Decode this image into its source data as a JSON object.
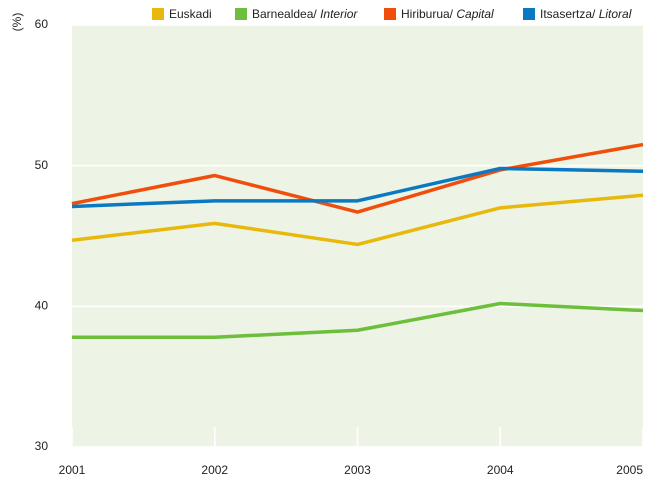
{
  "chart_data": {
    "type": "line",
    "y_label": "(%)",
    "x": [
      2001,
      2002,
      2003,
      2004,
      2005
    ],
    "series": [
      {
        "name": "Euskadi",
        "color": "#e8b90c",
        "values": [
          44.7,
          45.9,
          44.4,
          47.0,
          47.9
        ]
      },
      {
        "name": "Barnealdea/ Interior",
        "color": "#6cbf3a",
        "values": [
          37.8,
          37.8,
          38.3,
          40.2,
          39.7
        ]
      },
      {
        "name": "Hiriburua/ Capital",
        "color": "#f04e0c",
        "values": [
          47.3,
          49.3,
          46.7,
          49.7,
          51.5
        ]
      },
      {
        "name": "Itsasertza/ Litoral",
        "color": "#0b78c2",
        "values": [
          47.1,
          47.5,
          47.5,
          49.8,
          49.6
        ]
      }
    ],
    "xlim": [
      2001,
      2005
    ],
    "ylim": [
      30,
      60
    ],
    "yticks": [
      30,
      40,
      50,
      60
    ],
    "grid": true
  }
}
